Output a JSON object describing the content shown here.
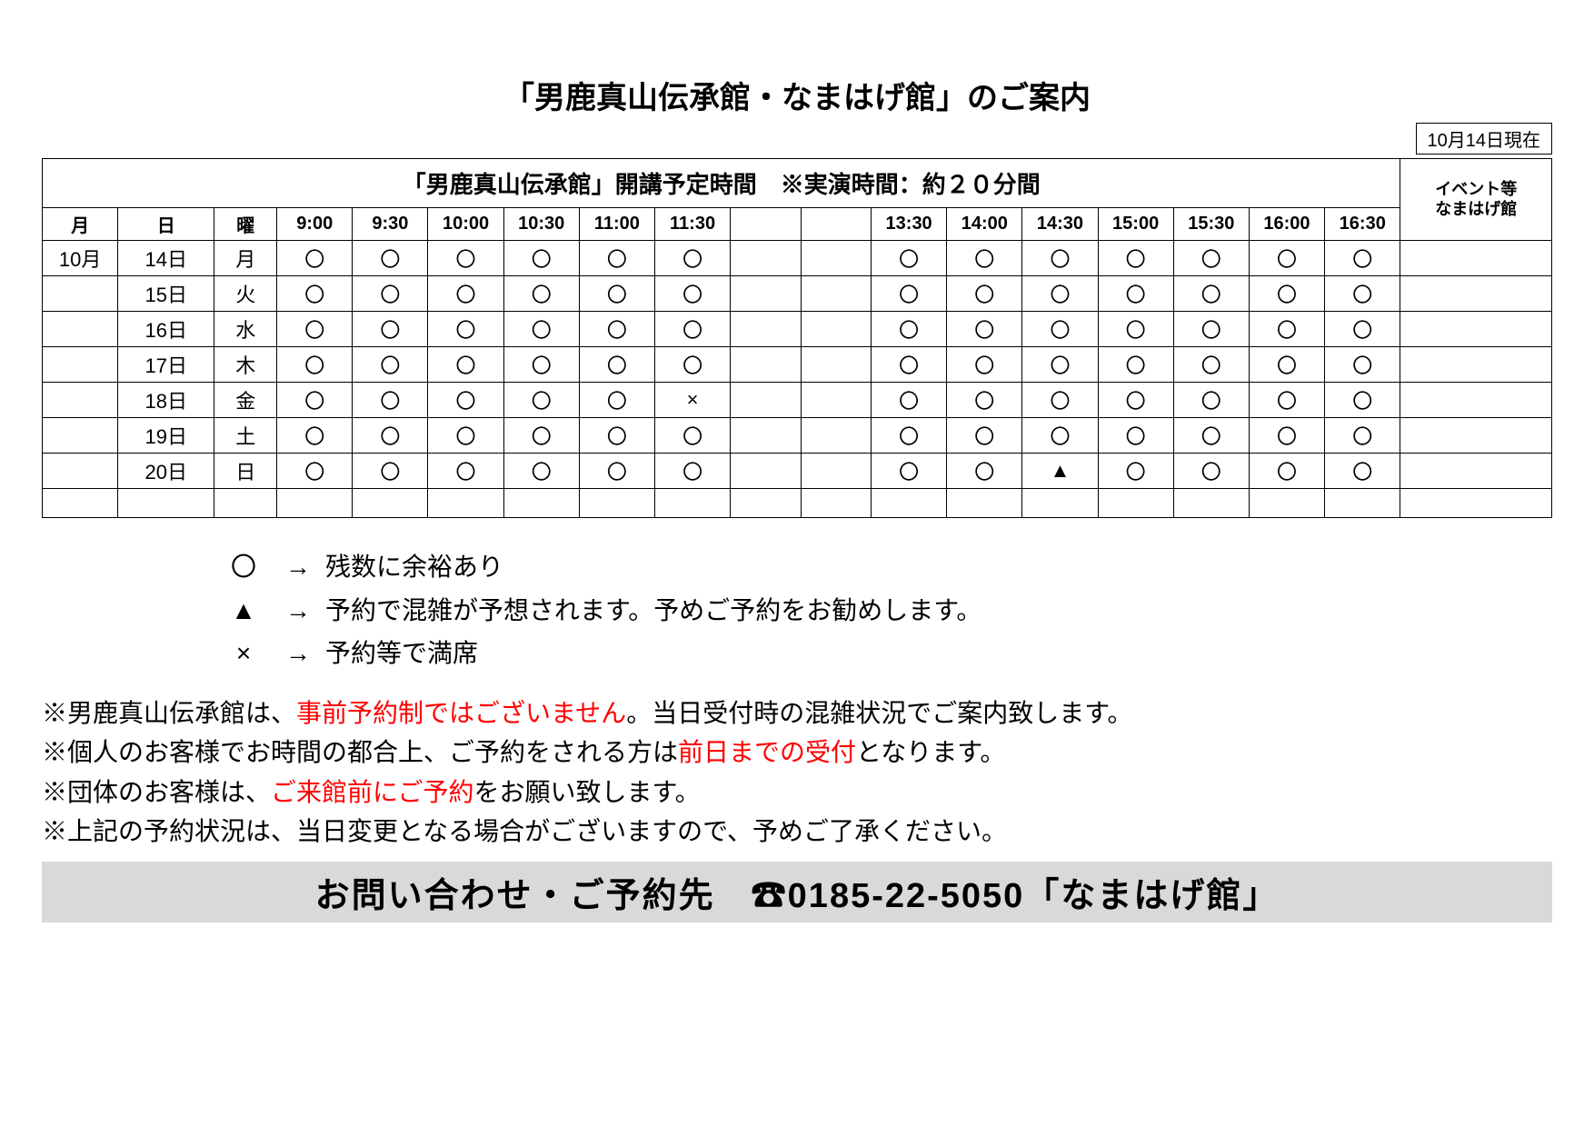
{
  "title": "「男鹿真山伝承館・なまはげ館」のご案内",
  "asof": "10月14日現在",
  "table": {
    "mainHeader": "「男鹿真山伝承館」開講予定時間　※実演時間：約２０分間",
    "eventHeader": "イベント等\nなまはげ館",
    "headRow": [
      "月",
      "日",
      "曜",
      "9:00",
      "9:30",
      "10:00",
      "10:30",
      "11:00",
      "11:30",
      "",
      "",
      "13:30",
      "14:00",
      "14:30",
      "15:00",
      "15:30",
      "16:00",
      "16:30",
      ""
    ],
    "rows": [
      [
        "10月",
        "14日",
        "月",
        "〇",
        "〇",
        "〇",
        "〇",
        "〇",
        "〇",
        "",
        "",
        "〇",
        "〇",
        "〇",
        "〇",
        "〇",
        "〇",
        "〇",
        ""
      ],
      [
        "",
        "15日",
        "火",
        "〇",
        "〇",
        "〇",
        "〇",
        "〇",
        "〇",
        "",
        "",
        "〇",
        "〇",
        "〇",
        "〇",
        "〇",
        "〇",
        "〇",
        ""
      ],
      [
        "",
        "16日",
        "水",
        "〇",
        "〇",
        "〇",
        "〇",
        "〇",
        "〇",
        "",
        "",
        "〇",
        "〇",
        "〇",
        "〇",
        "〇",
        "〇",
        "〇",
        ""
      ],
      [
        "",
        "17日",
        "木",
        "〇",
        "〇",
        "〇",
        "〇",
        "〇",
        "〇",
        "",
        "",
        "〇",
        "〇",
        "〇",
        "〇",
        "〇",
        "〇",
        "〇",
        ""
      ],
      [
        "",
        "18日",
        "金",
        "〇",
        "〇",
        "〇",
        "〇",
        "〇",
        "×",
        "",
        "",
        "〇",
        "〇",
        "〇",
        "〇",
        "〇",
        "〇",
        "〇",
        ""
      ],
      [
        "",
        "19日",
        "土",
        "〇",
        "〇",
        "〇",
        "〇",
        "〇",
        "〇",
        "",
        "",
        "〇",
        "〇",
        "〇",
        "〇",
        "〇",
        "〇",
        "〇",
        ""
      ],
      [
        "",
        "20日",
        "日",
        "〇",
        "〇",
        "〇",
        "〇",
        "〇",
        "〇",
        "",
        "",
        "〇",
        "〇",
        "▲",
        "〇",
        "〇",
        "〇",
        "〇",
        ""
      ],
      [
        "",
        "",
        "",
        "",
        "",
        "",
        "",
        "",
        "",
        "",
        "",
        "",
        "",
        "",
        "",
        "",
        "",
        "",
        ""
      ]
    ]
  },
  "legend": {
    "rows": [
      {
        "sym": "〇",
        "arrow": "→",
        "text": "残数に余裕あり"
      },
      {
        "sym": "▲",
        "arrow": "→",
        "text": "予約で混雑が予想されます。予めご予約をお勧めします。"
      },
      {
        "sym": "×",
        "arrow": "→",
        "text": "予約等で満席"
      }
    ]
  },
  "notes": {
    "n1a": "※男鹿真山伝承館は、",
    "n1b": "事前予約制ではございません",
    "n1c": "。当日受付時の混雑状況でご案内致します。",
    "n2a": "※個人のお客様でお時間の都合上、ご予約をされる方は",
    "n2b": "前日までの受付",
    "n2c": "となります。",
    "n3a": "※団体のお客様は、",
    "n3b": "ご来館前にご予約",
    "n3c": "をお願い致します。",
    "n4": "※上記の予約状況は、当日変更となる場合がございますので、予めご了承ください。"
  },
  "contact": "お問い合わせ・ご予約先　☎0185-22-5050「なまはげ館」",
  "colors": {
    "text": "#000000",
    "accentRed": "#ff0000",
    "contactBg": "#d9d9d9",
    "border": "#000000",
    "background": "#ffffff"
  },
  "typography": {
    "titleSize": 34,
    "tableHeaderSize": 26,
    "tableBodySize": 20,
    "legendSize": 28,
    "notesSize": 28,
    "contactSize": 38
  }
}
